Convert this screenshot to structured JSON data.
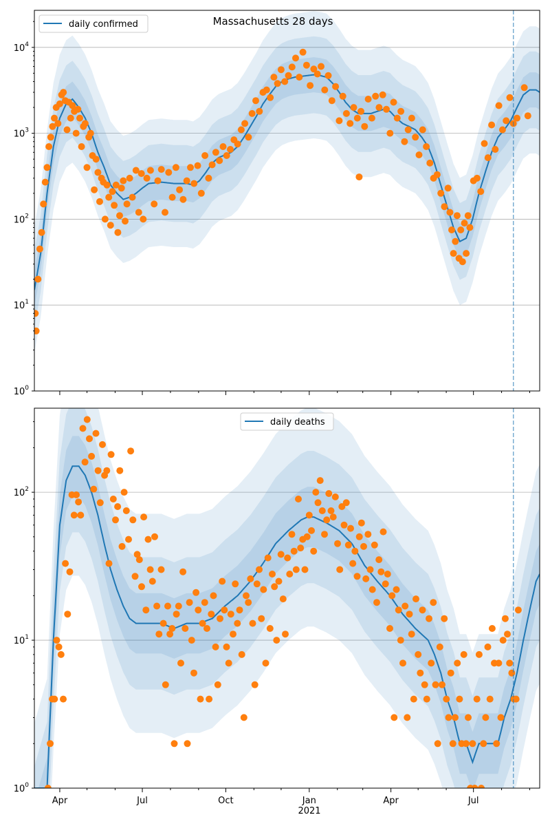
{
  "chart_data": [
    {
      "type": "line",
      "title": "Massachusetts 28 days",
      "legend": [
        "daily confirmed"
      ],
      "legend_placement": "top-left",
      "yscale": "log",
      "ylim": [
        1,
        27000
      ],
      "yticks": [
        "10^0",
        "10^1",
        "10^2",
        "10^3",
        "10^4"
      ],
      "x_start_date": "2020-03-04",
      "x_end_day": 557,
      "vline_day": 528,
      "grid": true,
      "model_days": [
        0,
        7,
        14,
        21,
        28,
        35,
        42,
        49,
        56,
        63,
        70,
        77,
        84,
        91,
        98,
        105,
        112,
        119,
        126,
        140,
        154,
        168,
        175,
        182,
        189,
        196,
        203,
        210,
        217,
        224,
        231,
        238,
        245,
        252,
        259,
        266,
        273,
        280,
        287,
        294,
        301,
        308,
        315,
        322,
        329,
        336,
        343,
        350,
        357,
        364,
        371,
        378,
        385,
        392,
        399,
        406,
        413,
        420,
        427,
        434,
        441,
        448,
        455,
        462,
        469,
        476,
        483,
        490,
        497,
        504,
        511,
        518,
        525,
        532,
        539,
        546,
        553,
        557
      ],
      "model_values": [
        15,
        40,
        200,
        700,
        1500,
        2200,
        2500,
        2000,
        1500,
        1000,
        600,
        400,
        250,
        200,
        170,
        180,
        200,
        230,
        260,
        270,
        260,
        260,
        250,
        280,
        350,
        450,
        520,
        560,
        600,
        700,
        900,
        1200,
        1600,
        2200,
        2800,
        3500,
        4000,
        4300,
        4500,
        4600,
        4700,
        4800,
        4700,
        4500,
        3800,
        3000,
        2300,
        1900,
        1700,
        1700,
        1700,
        1800,
        1900,
        1800,
        1500,
        1300,
        1200,
        1100,
        900,
        700,
        450,
        250,
        140,
        80,
        55,
        60,
        100,
        200,
        350,
        600,
        900,
        1100,
        1400,
        2000,
        2800,
        3200,
        3200,
        3000
      ],
      "band_factors": [
        1.6,
        2.8,
        5.5
      ],
      "observed": [
        [
          1,
          8
        ],
        [
          2,
          5
        ],
        [
          4,
          20
        ],
        [
          6,
          45
        ],
        [
          8,
          70
        ],
        [
          10,
          150
        ],
        [
          12,
          270
        ],
        [
          14,
          400
        ],
        [
          16,
          700
        ],
        [
          18,
          900
        ],
        [
          20,
          1200
        ],
        [
          22,
          1500
        ],
        [
          24,
          2000
        ],
        [
          26,
          1300
        ],
        [
          28,
          2200
        ],
        [
          30,
          2800
        ],
        [
          32,
          3000
        ],
        [
          34,
          2400
        ],
        [
          36,
          1100
        ],
        [
          38,
          2300
        ],
        [
          40,
          1500
        ],
        [
          42,
          2100
        ],
        [
          44,
          1800
        ],
        [
          46,
          1000
        ],
        [
          48,
          1900
        ],
        [
          50,
          1500
        ],
        [
          52,
          700
        ],
        [
          54,
          1200
        ],
        [
          56,
          1300
        ],
        [
          58,
          400
        ],
        [
          60,
          900
        ],
        [
          62,
          1000
        ],
        [
          64,
          550
        ],
        [
          66,
          220
        ],
        [
          68,
          500
        ],
        [
          70,
          350
        ],
        [
          72,
          160
        ],
        [
          74,
          300
        ],
        [
          76,
          270
        ],
        [
          78,
          100
        ],
        [
          80,
          250
        ],
        [
          82,
          180
        ],
        [
          84,
          85
        ],
        [
          86,
          210
        ],
        [
          88,
          145
        ],
        [
          90,
          250
        ],
        [
          92,
          70
        ],
        [
          94,
          110
        ],
        [
          96,
          230
        ],
        [
          98,
          280
        ],
        [
          100,
          95
        ],
        [
          102,
          150
        ],
        [
          105,
          300
        ],
        [
          108,
          180
        ],
        [
          112,
          370
        ],
        [
          115,
          120
        ],
        [
          118,
          340
        ],
        [
          120,
          100
        ],
        [
          124,
          300
        ],
        [
          128,
          370
        ],
        [
          132,
          150
        ],
        [
          136,
          280
        ],
        [
          140,
          380
        ],
        [
          144,
          120
        ],
        [
          148,
          350
        ],
        [
          152,
          180
        ],
        [
          156,
          400
        ],
        [
          160,
          220
        ],
        [
          164,
          170
        ],
        [
          168,
          280
        ],
        [
          172,
          400
        ],
        [
          176,
          260
        ],
        [
          180,
          420
        ],
        [
          184,
          200
        ],
        [
          188,
          550
        ],
        [
          192,
          300
        ],
        [
          196,
          430
        ],
        [
          200,
          600
        ],
        [
          204,
          480
        ],
        [
          208,
          700
        ],
        [
          212,
          550
        ],
        [
          216,
          650
        ],
        [
          220,
          840
        ],
        [
          224,
          750
        ],
        [
          228,
          1100
        ],
        [
          232,
          1300
        ],
        [
          236,
          900
        ],
        [
          240,
          1700
        ],
        [
          244,
          2400
        ],
        [
          248,
          1800
        ],
        [
          252,
          3000
        ],
        [
          256,
          3200
        ],
        [
          260,
          2600
        ],
        [
          264,
          4500
        ],
        [
          268,
          3800
        ],
        [
          272,
          5500
        ],
        [
          276,
          4000
        ],
        [
          280,
          4700
        ],
        [
          284,
          5900
        ],
        [
          288,
          7500
        ],
        [
          292,
          4500
        ],
        [
          296,
          8800
        ],
        [
          300,
          6200
        ],
        [
          304,
          3600
        ],
        [
          308,
          5600
        ],
        [
          312,
          4900
        ],
        [
          316,
          6000
        ],
        [
          320,
          3200
        ],
        [
          324,
          4700
        ],
        [
          328,
          2400
        ],
        [
          332,
          3500
        ],
        [
          336,
          1400
        ],
        [
          340,
          2700
        ],
        [
          344,
          1700
        ],
        [
          348,
          1300
        ],
        [
          352,
          2000
        ],
        [
          356,
          1500
        ],
        [
          358,
          310
        ],
        [
          360,
          1800
        ],
        [
          364,
          1200
        ],
        [
          368,
          2500
        ],
        [
          372,
          1500
        ],
        [
          376,
          2700
        ],
        [
          380,
          2000
        ],
        [
          384,
          2800
        ],
        [
          388,
          1900
        ],
        [
          392,
          1000
        ],
        [
          396,
          2300
        ],
        [
          400,
          1500
        ],
        [
          404,
          1800
        ],
        [
          408,
          800
        ],
        [
          412,
          1100
        ],
        [
          416,
          1500
        ],
        [
          420,
          900
        ],
        [
          424,
          560
        ],
        [
          428,
          1100
        ],
        [
          432,
          700
        ],
        [
          436,
          450
        ],
        [
          440,
          300
        ],
        [
          444,
          330
        ],
        [
          448,
          200
        ],
        [
          452,
          140
        ],
        [
          456,
          230
        ],
        [
          458,
          120
        ],
        [
          460,
          75
        ],
        [
          462,
          40
        ],
        [
          464,
          55
        ],
        [
          466,
          110
        ],
        [
          468,
          35
        ],
        [
          470,
          75
        ],
        [
          472,
          32
        ],
        [
          474,
          90
        ],
        [
          476,
          40
        ],
        [
          478,
          110
        ],
        [
          480,
          80
        ],
        [
          484,
          280
        ],
        [
          488,
          300
        ],
        [
          492,
          210
        ],
        [
          496,
          760
        ],
        [
          500,
          520
        ],
        [
          504,
          1250
        ],
        [
          508,
          650
        ],
        [
          512,
          2100
        ],
        [
          516,
          1100
        ],
        [
          520,
          1400
        ],
        [
          524,
          2600
        ],
        [
          528,
          1300
        ],
        [
          532,
          1500
        ],
        [
          540,
          3400
        ],
        [
          544,
          1600
        ]
      ]
    },
    {
      "type": "line",
      "legend": [
        "daily deaths"
      ],
      "legend_placement": "top-center",
      "yscale": "log",
      "ylim": [
        1,
        370
      ],
      "yticks": [
        "10^0",
        "10^1",
        "10^2"
      ],
      "x_start_date": "2020-03-04",
      "x_end_day": 557,
      "vline_day": 528,
      "grid": true,
      "xtick_labels": [
        "Apr",
        "Jul",
        "Oct",
        "Jan",
        "Apr",
        "Jul"
      ],
      "x_year_label": "2021",
      "model_days": [
        0,
        14,
        21,
        28,
        35,
        42,
        49,
        56,
        63,
        70,
        77,
        84,
        91,
        98,
        105,
        112,
        119,
        126,
        140,
        154,
        168,
        182,
        196,
        210,
        224,
        238,
        252,
        266,
        280,
        294,
        301,
        308,
        322,
        336,
        350,
        364,
        378,
        392,
        406,
        420,
        434,
        441,
        448,
        455,
        462,
        469,
        476,
        483,
        490,
        497,
        504,
        511,
        518,
        525,
        532,
        539,
        546,
        553,
        557
      ],
      "model_values": [
        0.5,
        1,
        10,
        60,
        120,
        150,
        150,
        130,
        100,
        70,
        45,
        30,
        22,
        17,
        14,
        13,
        13,
        13,
        13,
        12,
        13,
        13,
        14,
        17,
        20,
        25,
        33,
        45,
        55,
        65,
        68,
        68,
        62,
        55,
        45,
        32,
        25,
        20,
        15,
        12,
        10,
        8,
        6,
        4,
        3,
        2,
        2,
        1.5,
        2,
        2,
        2,
        2,
        3,
        4,
        6,
        10,
        16,
        25,
        28
      ],
      "band_factors": [
        1.6,
        2.8,
        5.5
      ],
      "observed_start_day": 15,
      "observed_step_days": 2.4,
      "observed_values": [
        1,
        2,
        4,
        4,
        10,
        9,
        8,
        4,
        33,
        15,
        29,
        96,
        70,
        96,
        86,
        70,
        270,
        160,
        310,
        230,
        175,
        105,
        250,
        140,
        85,
        210,
        130,
        140,
        33,
        180,
        90,
        65,
        80,
        140,
        43,
        100,
        75,
        48,
        190,
        65,
        27,
        38,
        35,
        23,
        68,
        16,
        48,
        30,
        25,
        50,
        17,
        11,
        30,
        13,
        5,
        17,
        11,
        12,
        2,
        15,
        17,
        7,
        29,
        12,
        2,
        18,
        10,
        6,
        21,
        16,
        4,
        13,
        18,
        12,
        4,
        15,
        20,
        9,
        5,
        14,
        25,
        16,
        9,
        7,
        15,
        11,
        24,
        13,
        16,
        8,
        3,
        20,
        18,
        26,
        13,
        5,
        24,
        30,
        14,
        22,
        7,
        36,
        12,
        28,
        23,
        10,
        25,
        38,
        19,
        11,
        36,
        28,
        52,
        40,
        30,
        90,
        42,
        48,
        30,
        50,
        70,
        55,
        40,
        100,
        85,
        120,
        75,
        52,
        65,
        98,
        75,
        68,
        93,
        45,
        30,
        80,
        60,
        85,
        44,
        57,
        33,
        40,
        27,
        50,
        62,
        43,
        26,
        52,
        30,
        22,
        44,
        18,
        35,
        29,
        54,
        24,
        28,
        12,
        20,
        3,
        22,
        16,
        10,
        7,
        17,
        3,
        15,
        11,
        4,
        19,
        8,
        6,
        16,
        5,
        4,
        14,
        7,
        18,
        5,
        2,
        9,
        5,
        14,
        4,
        3,
        6,
        2,
        3,
        7,
        4,
        2,
        8,
        2,
        3,
        1,
        2,
        1,
        4,
        8,
        1,
        2,
        3,
        9,
        4,
        12,
        7,
        2,
        7,
        3,
        10,
        14,
        11,
        7,
        6,
        4,
        4,
        16
      ]
    }
  ],
  "colors": {
    "line": "#1f77b4",
    "observed": "#ff7f0e",
    "band": "#1f77b4",
    "grid": "#b0b0b0"
  }
}
